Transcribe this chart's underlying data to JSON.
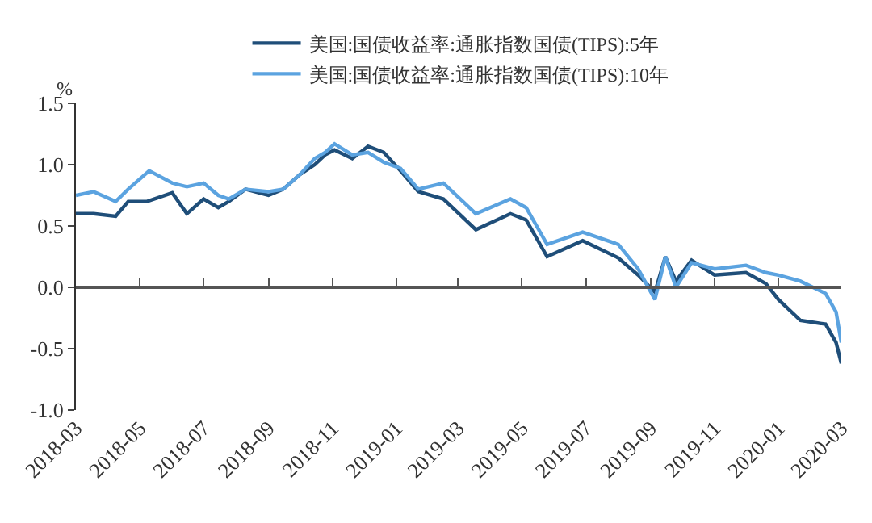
{
  "chart_data": {
    "type": "line",
    "ylabel": "%",
    "legend": "top",
    "marker": "none",
    "line_style": "solid",
    "xlim": [
      "2018-03-01",
      "2020-03-01"
    ],
    "xticks": [
      "2018-03",
      "2018-05",
      "2018-07",
      "2018-09",
      "2018-11",
      "2019-01",
      "2019-03",
      "2019-05",
      "2019-07",
      "2019-09",
      "2019-11",
      "2020-01",
      "2020-03"
    ],
    "ylim": [
      -1.0,
      1.5
    ],
    "yticks": [
      {
        "value": -1.0,
        "label": "-1.0"
      },
      {
        "value": -0.5,
        "label": "-0.5"
      },
      {
        "value": 0,
        "label": "0.0"
      },
      {
        "value": 0.5,
        "label": "0.5"
      },
      {
        "value": 1.0,
        "label": "1.0"
      },
      {
        "value": 1.5,
        "label": "1.5"
      }
    ],
    "series": [
      {
        "name": "美国:国债收益率:通胀指数国债(TIPS):5年",
        "color": "#1f4e79",
        "x": [
          "2018-03-01",
          "2018-03-18",
          "2018-04-08",
          "2018-04-20",
          "2018-05-08",
          "2018-06-01",
          "2018-06-15",
          "2018-07-01",
          "2018-07-15",
          "2018-07-25",
          "2018-08-10",
          "2018-09-01",
          "2018-09-15",
          "2018-10-01",
          "2018-10-15",
          "2018-10-25",
          "2018-11-03",
          "2018-11-20",
          "2018-12-05",
          "2018-12-20",
          "2019-01-05",
          "2019-01-22",
          "2019-02-15",
          "2019-03-18",
          "2019-04-20",
          "2019-05-05",
          "2019-05-25",
          "2019-06-28",
          "2019-08-01",
          "2019-08-20",
          "2019-09-05",
          "2019-09-15",
          "2019-09-25",
          "2019-10-10",
          "2019-11-01",
          "2019-12-01",
          "2019-12-20",
          "2020-01-01",
          "2020-01-22",
          "2020-02-15",
          "2020-02-25",
          "2020-03-01"
        ],
        "values": [
          0.6,
          0.6,
          0.58,
          0.7,
          0.7,
          0.77,
          0.6,
          0.72,
          0.65,
          0.7,
          0.8,
          0.75,
          0.8,
          0.92,
          1.0,
          1.08,
          1.12,
          1.05,
          1.15,
          1.1,
          0.95,
          0.78,
          0.72,
          0.47,
          0.6,
          0.55,
          0.25,
          0.38,
          0.24,
          0.1,
          -0.04,
          0.25,
          0.05,
          0.22,
          0.1,
          0.12,
          0.03,
          -0.1,
          -0.27,
          -0.3,
          -0.45,
          -0.62
        ]
      },
      {
        "name": "美国:国债收益率:通胀指数国债(TIPS):10年",
        "color": "#5ba3e0",
        "x": [
          "2018-03-01",
          "2018-03-18",
          "2018-04-08",
          "2018-04-20",
          "2018-05-10",
          "2018-06-01",
          "2018-06-15",
          "2018-07-01",
          "2018-07-15",
          "2018-07-25",
          "2018-08-10",
          "2018-09-01",
          "2018-09-15",
          "2018-10-01",
          "2018-10-15",
          "2018-10-25",
          "2018-11-03",
          "2018-11-20",
          "2018-12-05",
          "2018-12-20",
          "2019-01-05",
          "2019-01-22",
          "2019-02-15",
          "2019-03-18",
          "2019-04-20",
          "2019-05-05",
          "2019-05-25",
          "2019-06-28",
          "2019-08-01",
          "2019-08-20",
          "2019-09-05",
          "2019-09-15",
          "2019-09-25",
          "2019-10-10",
          "2019-11-01",
          "2019-12-01",
          "2019-12-20",
          "2020-01-01",
          "2020-01-22",
          "2020-02-15",
          "2020-02-25",
          "2020-03-01"
        ],
        "values": [
          0.75,
          0.78,
          0.7,
          0.8,
          0.95,
          0.85,
          0.82,
          0.85,
          0.75,
          0.72,
          0.8,
          0.78,
          0.8,
          0.92,
          1.05,
          1.1,
          1.17,
          1.08,
          1.1,
          1.02,
          0.97,
          0.8,
          0.85,
          0.6,
          0.72,
          0.65,
          0.35,
          0.45,
          0.35,
          0.15,
          -0.1,
          0.25,
          0.0,
          0.2,
          0.15,
          0.18,
          0.12,
          0.1,
          0.05,
          -0.05,
          -0.2,
          -0.45
        ]
      }
    ]
  }
}
